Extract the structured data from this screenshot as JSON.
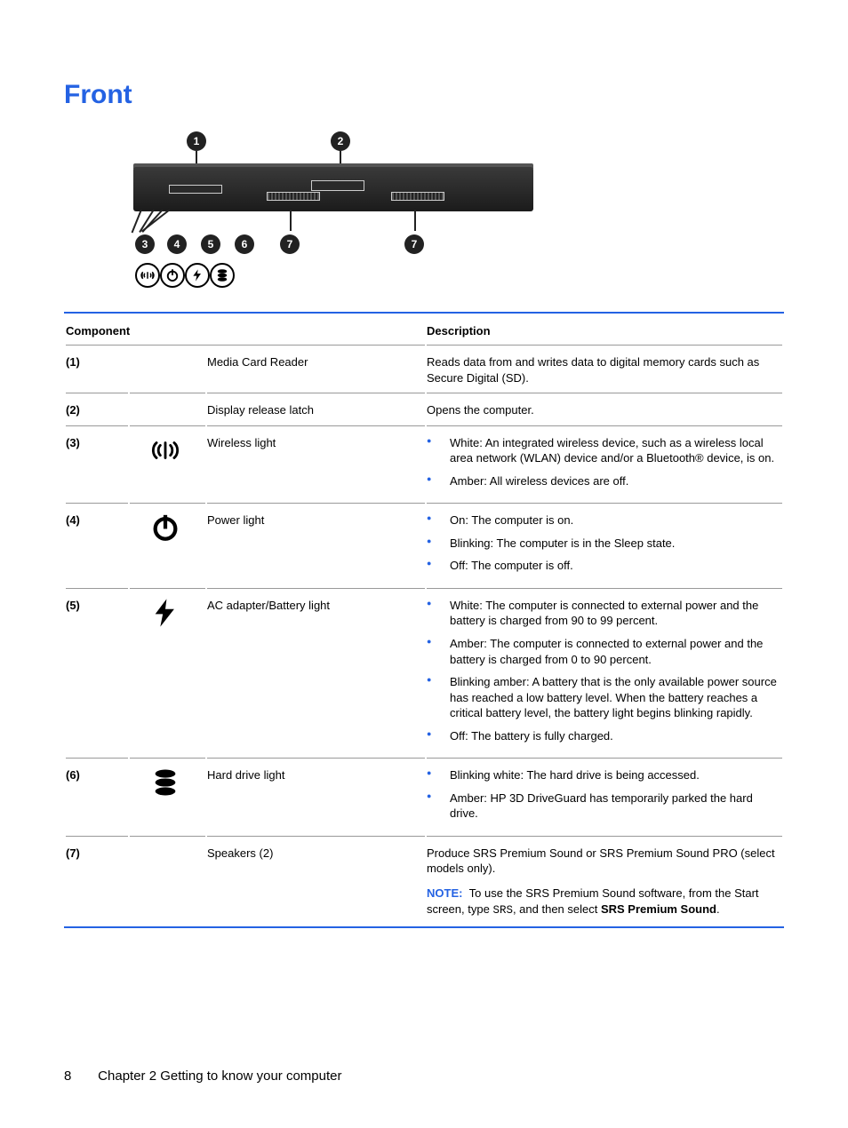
{
  "title": "Front",
  "colors": {
    "accent": "#2462e3",
    "text": "#000000",
    "bg": "#ffffff"
  },
  "headers": {
    "component": "Component",
    "description": "Description"
  },
  "rows": [
    {
      "num": "(1)",
      "icon": null,
      "name": "Media Card Reader",
      "desc_plain": "Reads data from and writes data to digital memory cards such as Secure Digital (SD)."
    },
    {
      "num": "(2)",
      "icon": null,
      "name": "Display release latch",
      "desc_plain": "Opens the computer."
    },
    {
      "num": "(3)",
      "icon": "wireless",
      "name": "Wireless light",
      "bullets": [
        "White: An integrated wireless device, such as a wireless local area network (WLAN) device and/or a Bluetooth® device, is on.",
        "Amber: All wireless devices are off."
      ]
    },
    {
      "num": "(4)",
      "icon": "power",
      "name": "Power light",
      "bullets": [
        "On: The computer is on.",
        "Blinking: The computer is in the Sleep state.",
        "Off: The computer is off."
      ]
    },
    {
      "num": "(5)",
      "icon": "bolt",
      "name": "AC adapter/Battery light",
      "bullets": [
        "White: The computer is connected to external power and the battery is charged from 90 to 99 percent.",
        "Amber: The computer is connected to external power and the battery is charged from 0 to 90 percent.",
        "Blinking amber: A battery that is the only available power source has reached a low battery level. When the battery reaches a critical battery level, the battery light begins blinking rapidly.",
        "Off: The battery is fully charged."
      ]
    },
    {
      "num": "(6)",
      "icon": "hdd",
      "name": "Hard drive light",
      "bullets": [
        "Blinking white: The hard drive is being accessed.",
        "Amber: HP 3D DriveGuard has temporarily parked the hard drive."
      ]
    },
    {
      "num": "(7)",
      "icon": null,
      "name": "Speakers (2)",
      "desc_plain": "Produce SRS Premium Sound or SRS Premium Sound PRO (select models only).",
      "note_label": "NOTE:",
      "note_text_pre": "To use the SRS Premium Sound software, from the Start screen, type ",
      "note_mono": "SRS",
      "note_text_mid": ", and then select ",
      "note_bold": "SRS Premium Sound",
      "note_text_post": "."
    }
  ],
  "footer": {
    "page": "8",
    "chapter_label": "Chapter 2   Getting to know your computer"
  },
  "diagram": {
    "top_bubbles": [
      "1",
      "2"
    ],
    "bottom_bubbles": [
      "3",
      "4",
      "5",
      "6",
      "7",
      "7"
    ],
    "ring_icons": [
      "wireless",
      "power",
      "bolt",
      "hdd"
    ]
  }
}
